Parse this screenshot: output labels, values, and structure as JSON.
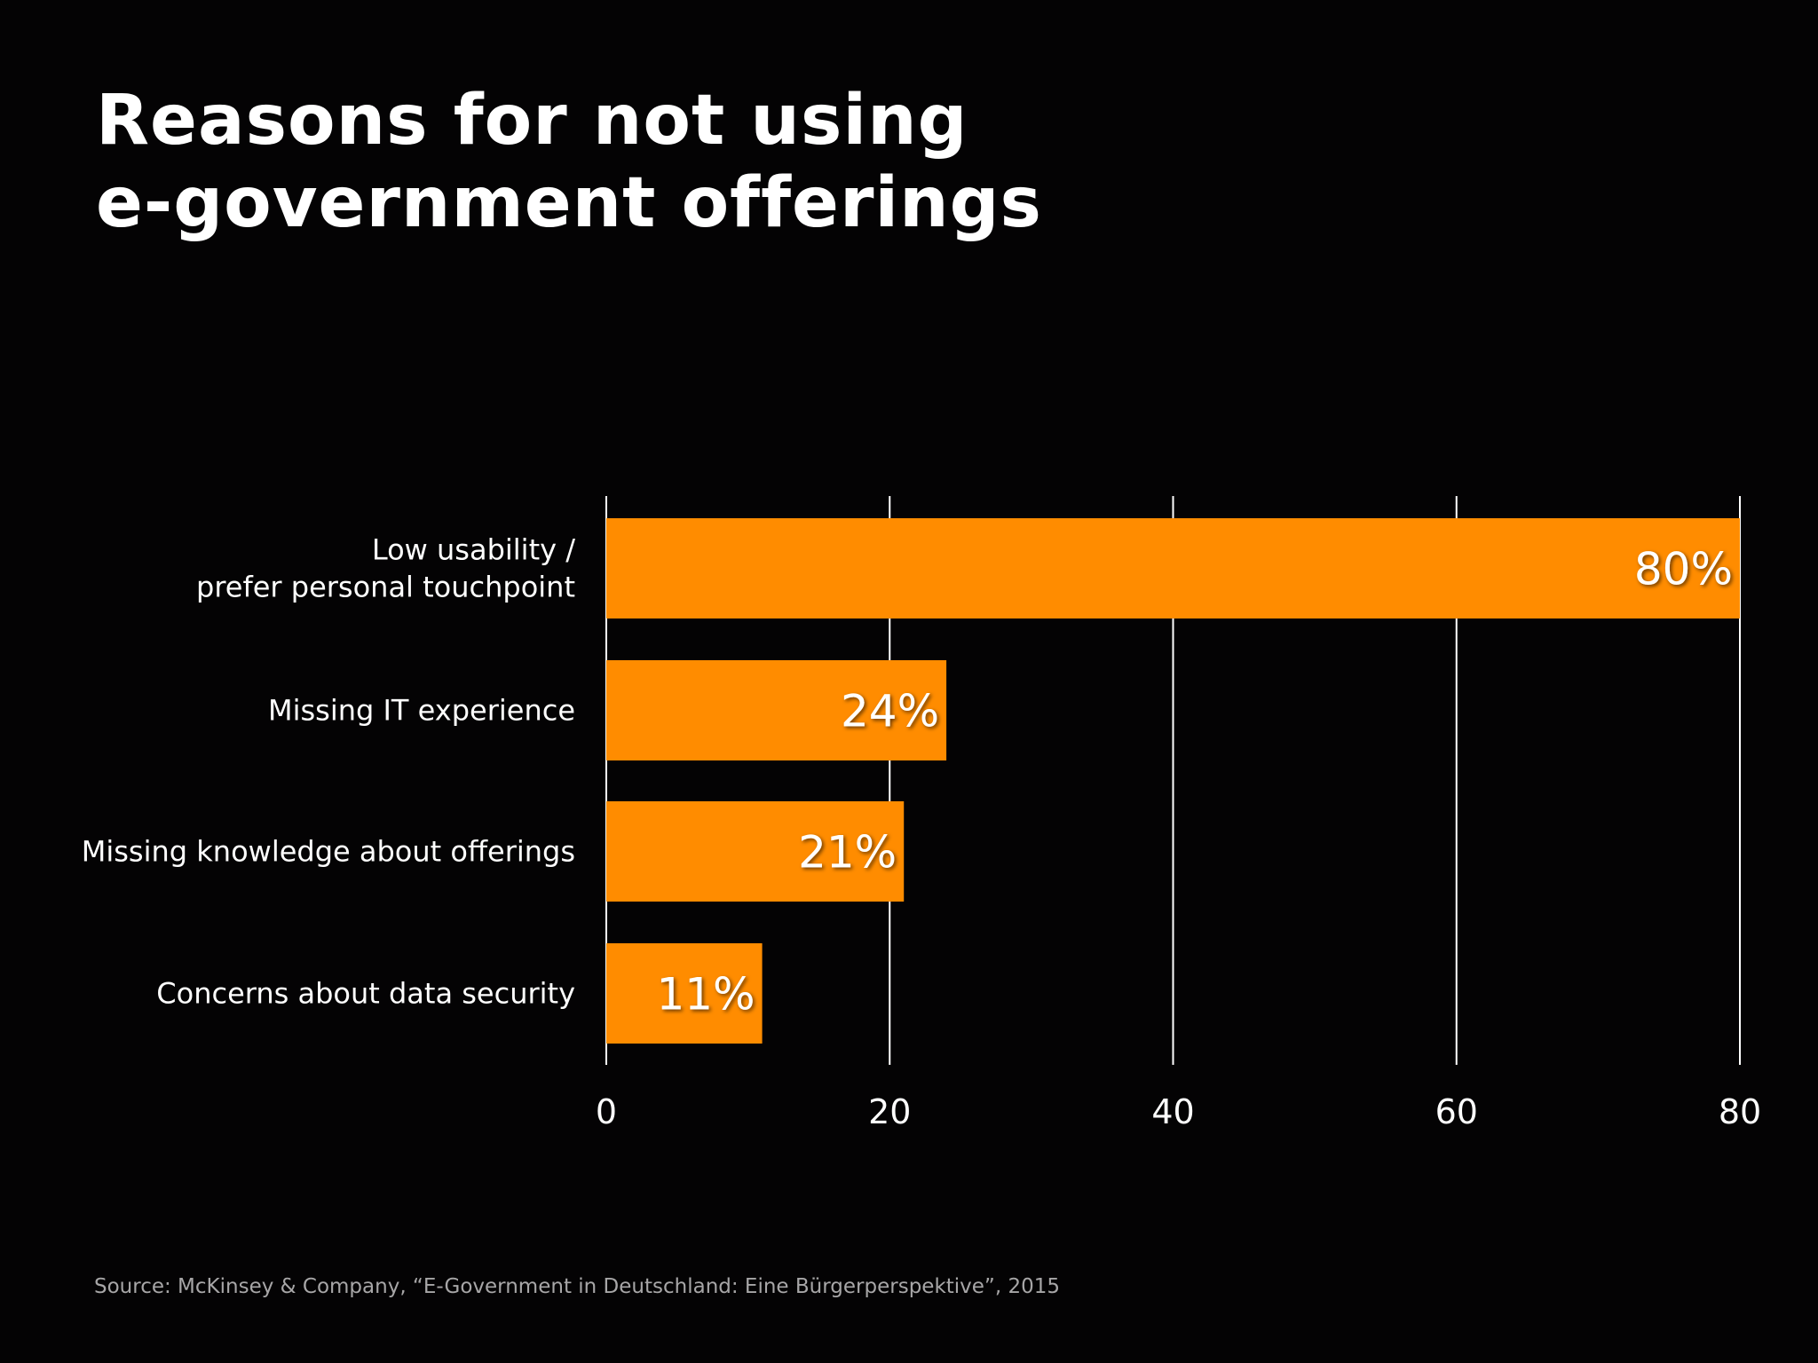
{
  "title": {
    "line1": "Reasons for not using",
    "line2": "e-government offerings"
  },
  "source": "Source: McKinsey & Company, “E-Government in Deutschland: Eine Bürgerperspektive”, 2015",
  "colors": {
    "background": "#040304",
    "bar": "#ff8c00",
    "text": "#ffffff",
    "grid": "#ffffff",
    "source": "#a7a6a7"
  },
  "chart_data": {
    "type": "bar",
    "orientation": "horizontal",
    "title": "Reasons for not using e-government offerings",
    "categories": [
      [
        "Low usability /",
        "prefer personal touchpoint"
      ],
      [
        "Missing IT experience"
      ],
      [
        "Missing knowledge about offerings"
      ],
      [
        "Concerns about data security"
      ]
    ],
    "values": [
      80,
      24,
      21,
      11
    ],
    "value_labels": [
      "80%",
      "24%",
      "21%",
      "11%"
    ],
    "xlim": [
      0,
      80
    ],
    "xticks": [
      0,
      20,
      40,
      60,
      80
    ],
    "xtick_labels": [
      "0",
      "20",
      "40",
      "60",
      "80"
    ],
    "grid": true,
    "legend": "none"
  }
}
